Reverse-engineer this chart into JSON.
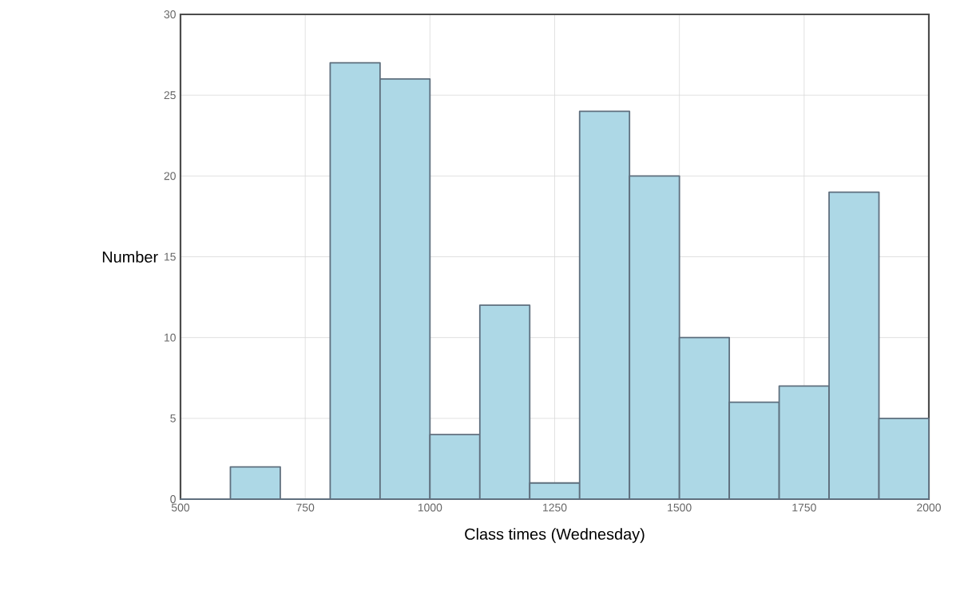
{
  "chart_data": {
    "type": "histogram",
    "xlabel": "Class times (Wednesday)",
    "ylabel": "Number",
    "bins": [
      500,
      600,
      700,
      800,
      900,
      1000,
      1100,
      1200,
      1300,
      1400,
      1500,
      1600,
      1700,
      1800,
      1900,
      2000
    ],
    "values": [
      0,
      2,
      0,
      27,
      26,
      4,
      12,
      1,
      24,
      20,
      10,
      6,
      7,
      19,
      5
    ],
    "color": "#add8e6",
    "xlim": [
      500,
      2000
    ],
    "ylim": [
      0,
      30
    ],
    "xticks": [
      500,
      750,
      1000,
      1250,
      1500,
      1750,
      2000
    ],
    "yticks": [
      0,
      5,
      10,
      15,
      20,
      25,
      30
    ],
    "grid": true
  }
}
